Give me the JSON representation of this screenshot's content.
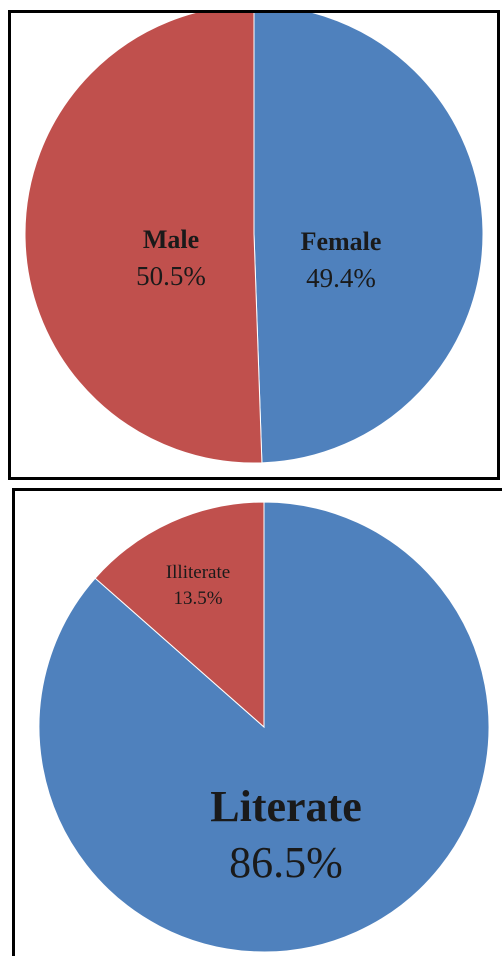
{
  "chart_data": [
    {
      "type": "pie",
      "title": "",
      "slices": [
        {
          "label": "Female",
          "value_label": "49.4%",
          "value": 49.4,
          "color": "#4F81BD"
        },
        {
          "label": "Male",
          "value_label": "50.5%",
          "value": 50.5,
          "color": "#C0504D"
        }
      ],
      "legend": "none",
      "start": "12 o'clock",
      "direction": "clockwise"
    },
    {
      "type": "pie",
      "title": "",
      "slices": [
        {
          "label": "Literate",
          "value_label": "86.5%",
          "value": 86.5,
          "color": "#4F81BD"
        },
        {
          "label": "Illiterate",
          "value_label": "13.5%",
          "value": 13.5,
          "color": "#C0504D"
        }
      ],
      "legend": "none",
      "start": "12 o'clock",
      "direction": "clockwise"
    }
  ]
}
